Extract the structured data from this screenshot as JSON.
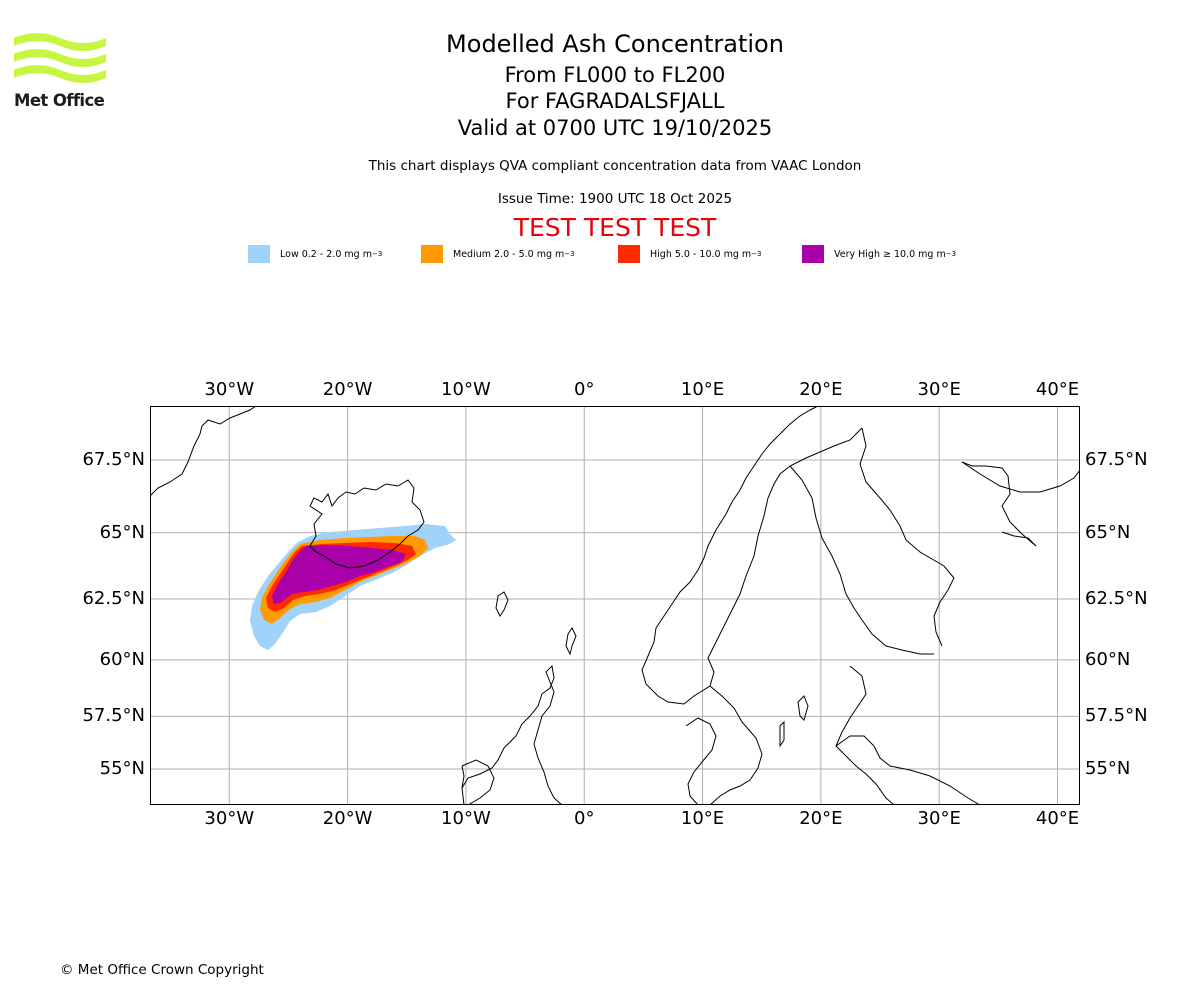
{
  "logo": {
    "text": "Met Office",
    "color": "#c8f541"
  },
  "title": {
    "main": "Modelled Ash Concentration",
    "levels": "From FL000 to FL200",
    "volcano": "For FAGRADALSFJALL",
    "valid": "Valid at 0700 UTC 19/10/2025"
  },
  "subtitle": "This chart displays QVA compliant concentration data from VAAC London",
  "issue_time": "Issue Time: 1900 UTC 18 Oct 2025",
  "test_banner": "TEST TEST TEST",
  "legend": [
    {
      "label": "Low 0.2 - 2.0 mg m",
      "sup": "−3",
      "color": "#a0d2fa"
    },
    {
      "label": "Medium 2.0 - 5.0 mg m",
      "sup": "−3",
      "color": "#ff9a00"
    },
    {
      "label": "High 5.0 - 10.0 mg m",
      "sup": "−3",
      "color": "#ff2a00"
    },
    {
      "label": "Very High ≥ 10.0 mg m",
      "sup": "−3",
      "color": "#aa00aa"
    }
  ],
  "map": {
    "lon_ticks": [
      "30°W",
      "20°W",
      "10°W",
      "0°",
      "10°E",
      "20°E",
      "30°E",
      "40°E"
    ],
    "lat_ticks": [
      "67.5°N",
      "65°N",
      "62.5°N",
      "60°N",
      "57.5°N",
      "55°N"
    ],
    "lon_values": [
      -30,
      -20,
      -10,
      0,
      10,
      20,
      30,
      40
    ],
    "lat_values": [
      67.5,
      65,
      62.5,
      60,
      57.5,
      55
    ],
    "extent": {
      "lon_min": -36.7,
      "lon_max": 41.9,
      "lat_min": 53.2,
      "lat_max": 69.2
    }
  },
  "copyright": "© Met Office Crown Copyright"
}
